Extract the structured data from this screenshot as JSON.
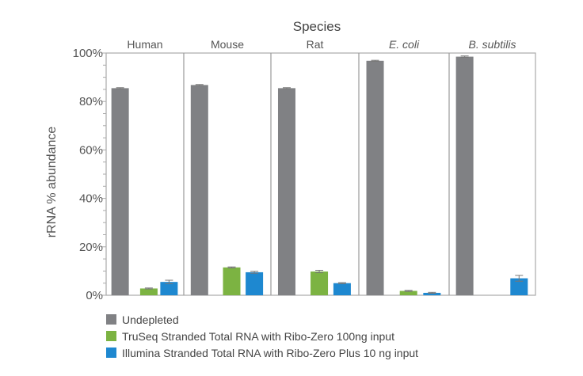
{
  "chart_data": {
    "type": "bar",
    "title": "Species",
    "ylabel": "rRNA % abundance",
    "xlabel": "",
    "ylim": [
      0,
      100
    ],
    "yticks": [
      "0%",
      "20%",
      "40%",
      "60%",
      "80%",
      "100%"
    ],
    "categories": [
      "Human",
      "Mouse",
      "Rat",
      "E. coli",
      "B. subtilis"
    ],
    "italic_categories": [
      "E. coli",
      "B. subtilis"
    ],
    "legend_position": "bottom-left",
    "series": [
      {
        "name": "Undepleted",
        "color": "#808184",
        "values": [
          85.5,
          86.8,
          85.5,
          96.8,
          98.5
        ],
        "errors": [
          0.2,
          0.2,
          0.2,
          0.2,
          0.3
        ]
      },
      {
        "name": "TruSeq Stranded Total RNA with Ribo-Zero 100ng input",
        "color": "#7cb342",
        "values": [
          2.8,
          11.5,
          9.8,
          1.8,
          0
        ],
        "errors": [
          0.2,
          0.2,
          0.5,
          0.2,
          0
        ]
      },
      {
        "name": "Illumina Stranded Total RNA with Ribo-Zero Plus 10 ng input",
        "color": "#1e88d0",
        "values": [
          5.5,
          9.5,
          5.0,
          1.0,
          7.0
        ],
        "errors": [
          0.7,
          0.4,
          0.2,
          0.2,
          1.2
        ]
      }
    ]
  }
}
